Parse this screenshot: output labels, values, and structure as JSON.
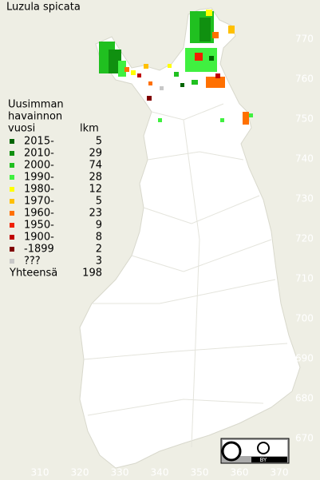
{
  "title": "Luzula spicata",
  "legend": {
    "heading": [
      "Uusimman",
      "havainnon",
      "vuosi"
    ],
    "count_header": "lkm",
    "entries": [
      {
        "label": "2015-",
        "count": 5,
        "color": "#006400"
      },
      {
        "label": "2010-",
        "count": 29,
        "color": "#109010"
      },
      {
        "label": "2000-",
        "count": 74,
        "color": "#20c020"
      },
      {
        "label": "1990-",
        "count": 28,
        "color": "#40f040"
      },
      {
        "label": "1980-",
        "count": 12,
        "color": "#ffff00"
      },
      {
        "label": "1970-",
        "count": 5,
        "color": "#ffc000"
      },
      {
        "label": "1960-",
        "count": 23,
        "color": "#ff7000"
      },
      {
        "label": "1950-",
        "count": 9,
        "color": "#f02000"
      },
      {
        "label": "1900-",
        "count": 8,
        "color": "#c00000"
      },
      {
        "label": "-1899",
        "count": 2,
        "color": "#800000"
      },
      {
        "label": "???",
        "count": 3,
        "color": "#c8c8c8"
      }
    ],
    "total_label": "Yhteensä",
    "total": 198
  },
  "axes": {
    "y_labels": [
      770,
      760,
      750,
      740,
      730,
      720,
      710,
      700,
      690,
      680,
      670
    ],
    "x_labels": [
      310,
      320,
      330,
      340,
      350,
      360,
      370
    ]
  },
  "badge": {
    "by": "BY"
  }
}
